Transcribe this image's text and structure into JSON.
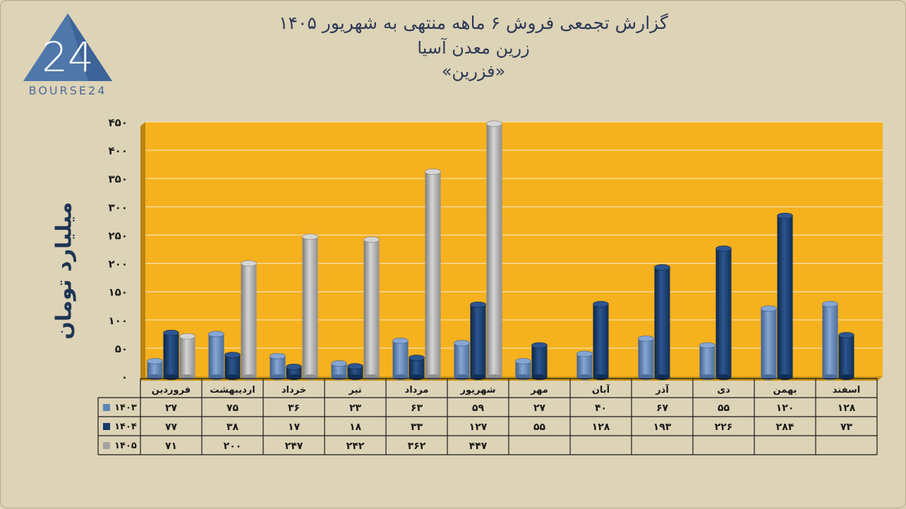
{
  "title": {
    "line1": "گزارش تجمعی فروش ۶ ماهه منتهی به شهریور ۱۴۰۵",
    "line2": "زرین معدن آسیا",
    "line3": "«فزرین»"
  },
  "logo": {
    "text": "BOURSE24",
    "mark": "24"
  },
  "colors": {
    "s1403": "#5f84b6",
    "s1404": "#163a68",
    "s1405": "#a3a3a3",
    "plot_bg": "#f6b11e",
    "background": "#ddd3b6"
  },
  "chart_data": {
    "type": "bar",
    "title": "گزارش تجمعی فروش ۶ ماهه منتهی به شهریور ۱۴۰۵",
    "subtitle": "زرین معدن آسیا «فزرین»",
    "ylabel": "میلیارد تومان",
    "xlabel": "",
    "ylim": [
      0,
      450
    ],
    "yticks": [
      0,
      50,
      100,
      150,
      200,
      250,
      300,
      350,
      400,
      450
    ],
    "ytick_labels": [
      "۰",
      "۵۰",
      "۱۰۰",
      "۱۵۰",
      "۲۰۰",
      "۲۵۰",
      "۳۰۰",
      "۳۵۰",
      "۴۰۰",
      "۴۵۰"
    ],
    "grid": true,
    "legend": "data-table",
    "categories": [
      "فروردین",
      "اردیبهشت",
      "خرداد",
      "تیر",
      "مرداد",
      "شهریور",
      "مهر",
      "آبان",
      "آذر",
      "دی",
      "بهمن",
      "اسفند"
    ],
    "series": [
      {
        "name": "۱۴۰۳",
        "values": [
          27,
          75,
          36,
          23,
          63,
          59,
          27,
          40,
          67,
          55,
          120,
          128
        ],
        "labels": [
          "۲۷",
          "۷۵",
          "۳۶",
          "۲۳",
          "۶۳",
          "۵۹",
          "۲۷",
          "۴۰",
          "۶۷",
          "۵۵",
          "۱۲۰",
          "۱۲۸"
        ]
      },
      {
        "name": "۱۴۰۴",
        "values": [
          77,
          38,
          17,
          18,
          33,
          127,
          55,
          128,
          193,
          226,
          284,
          73
        ],
        "labels": [
          "۷۷",
          "۳۸",
          "۱۷",
          "۱۸",
          "۳۳",
          "۱۲۷",
          "۵۵",
          "۱۲۸",
          "۱۹۳",
          "۲۲۶",
          "۲۸۴",
          "۷۳"
        ]
      },
      {
        "name": "۱۴۰۵",
        "values": [
          71,
          200,
          247,
          242,
          362,
          447,
          null,
          null,
          null,
          null,
          null,
          null
        ],
        "labels": [
          "۷۱",
          "۲۰۰",
          "۲۴۷",
          "۲۴۲",
          "۳۶۲",
          "۴۴۷",
          "",
          "",
          "",
          "",
          "",
          ""
        ]
      }
    ]
  }
}
